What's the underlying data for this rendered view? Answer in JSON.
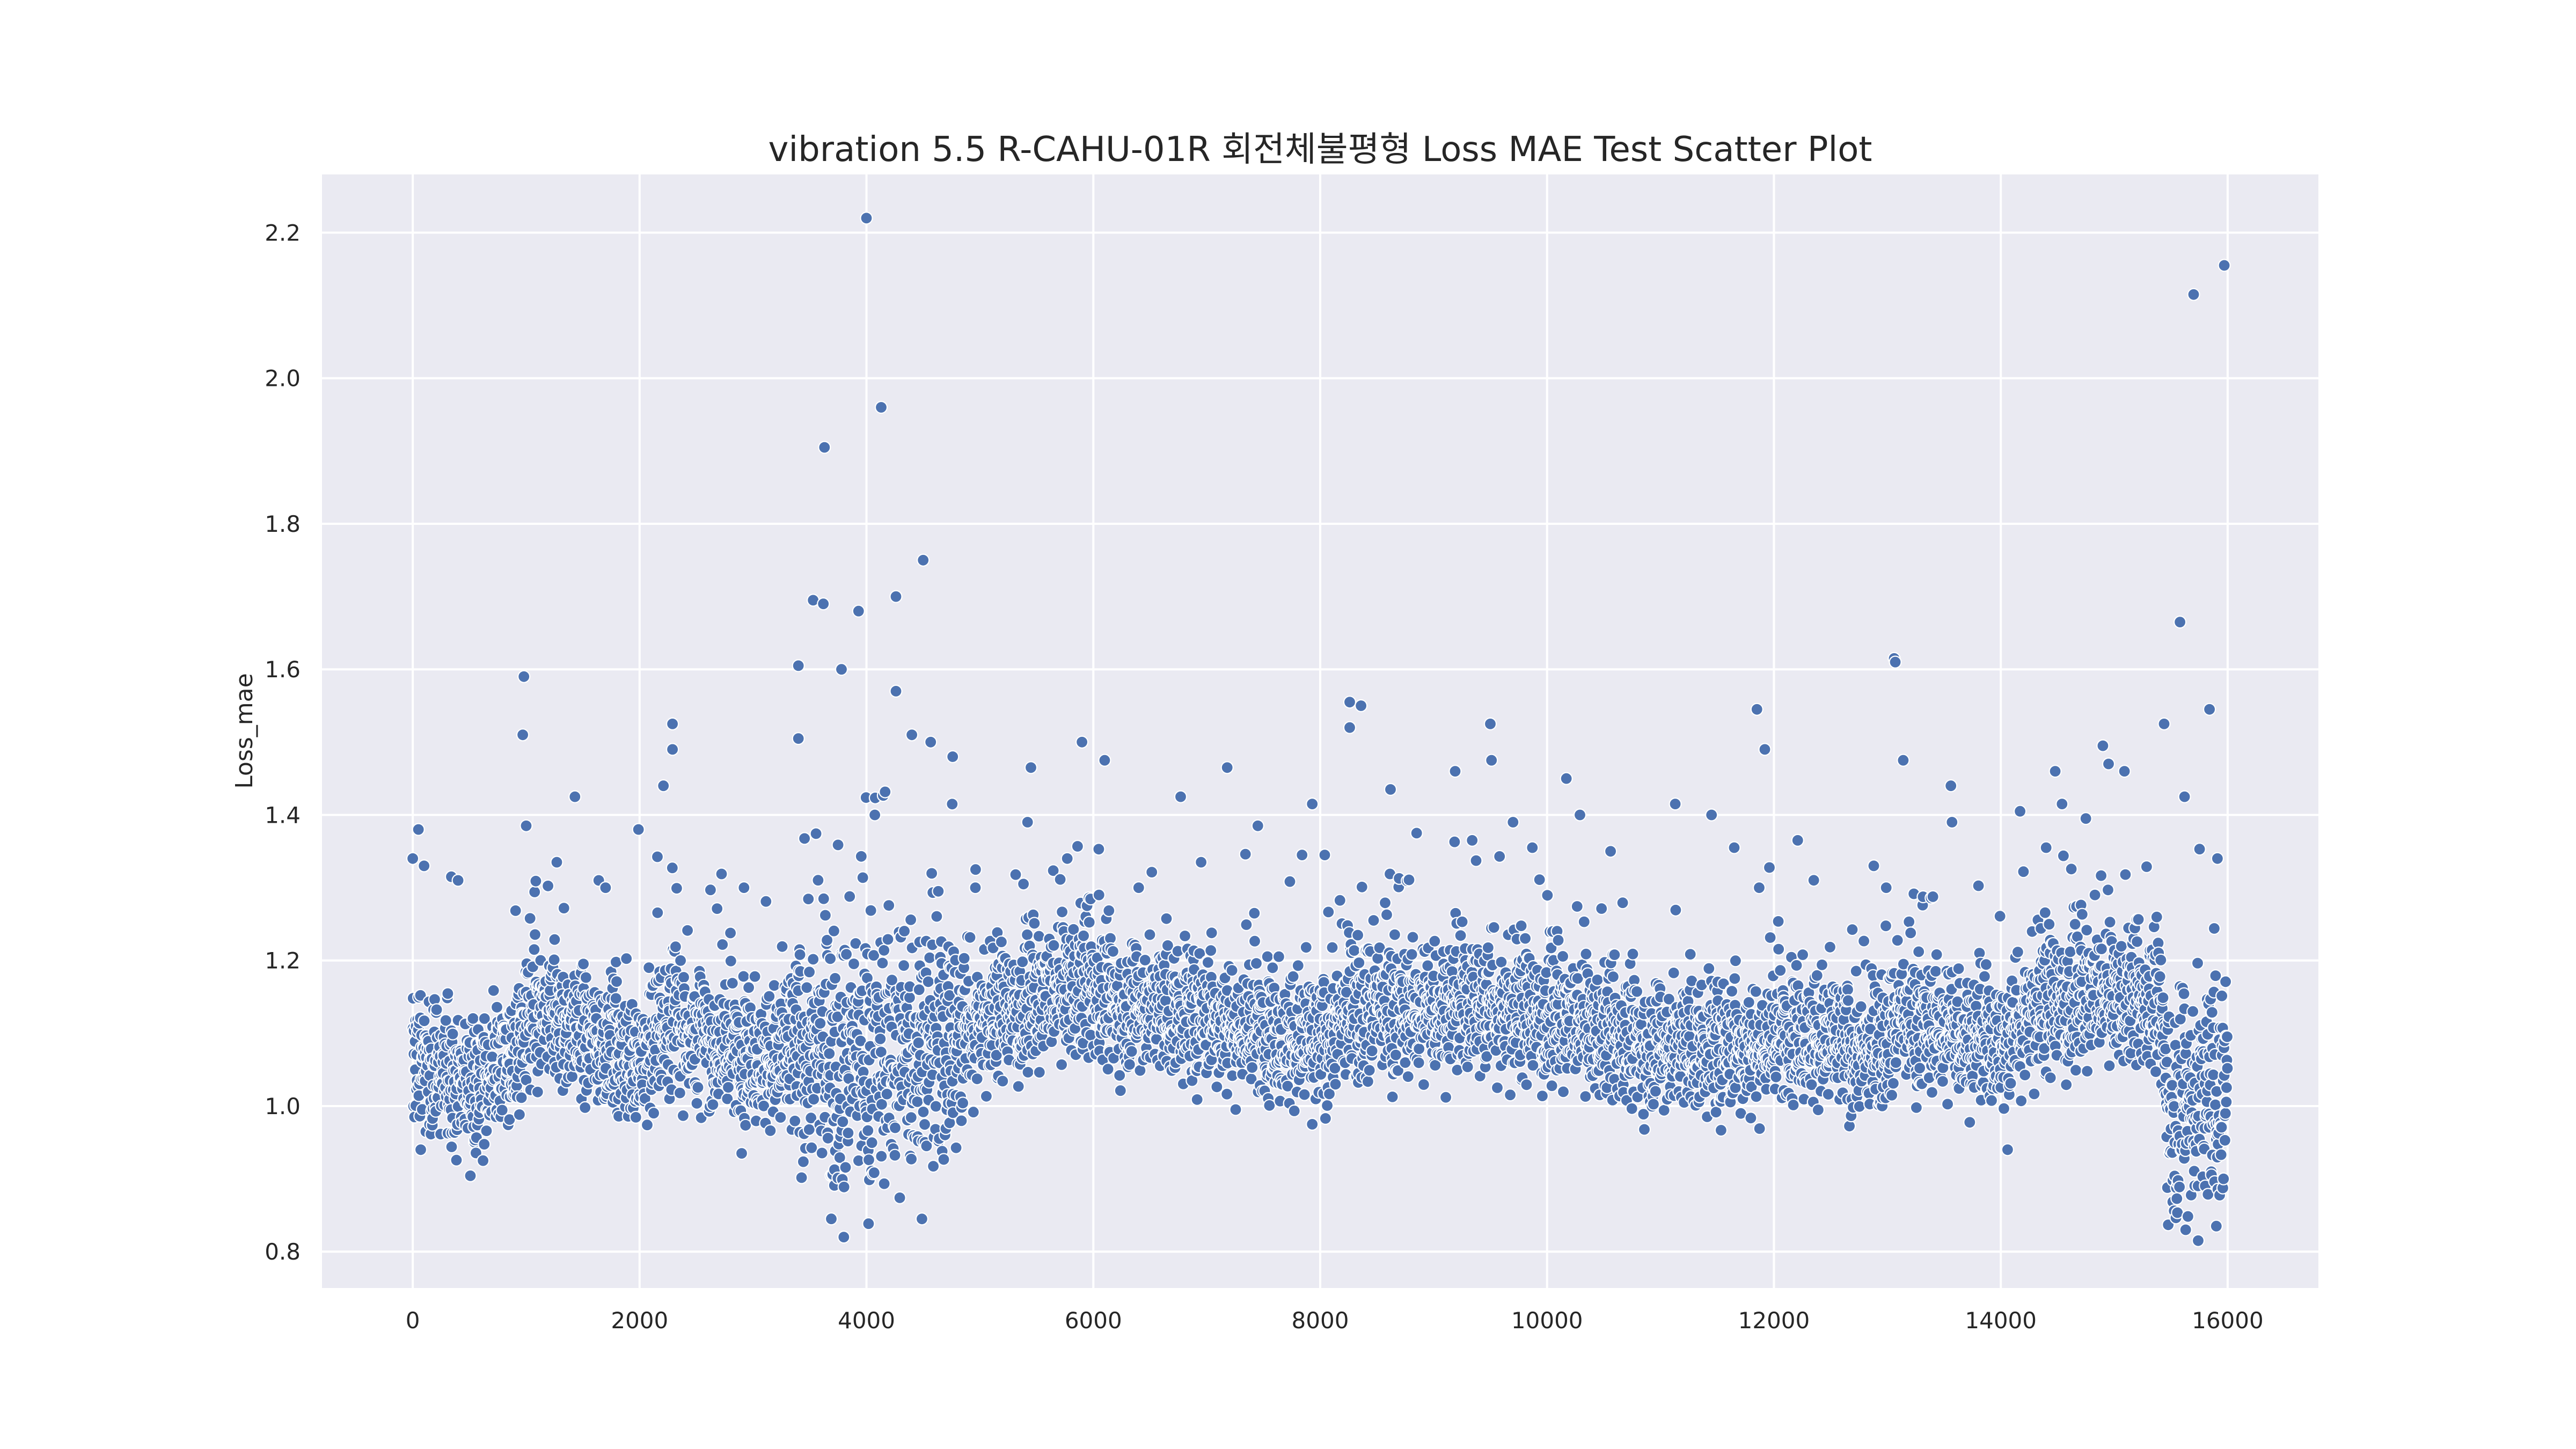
{
  "chart_data": {
    "type": "scatter",
    "title": "vibration 5.5 R-CAHU-01R 회전체불평형 Loss MAE Test Scatter Plot",
    "xlabel": "",
    "ylabel": "Loss_mae",
    "xlim": [
      -800,
      16800
    ],
    "ylim": [
      0.75,
      2.28
    ],
    "xticks": [
      0,
      2000,
      4000,
      6000,
      8000,
      10000,
      12000,
      14000,
      16000
    ],
    "yticks": [
      0.8,
      1.0,
      1.2,
      1.4,
      1.6,
      1.8,
      2.0,
      2.2
    ],
    "xtick_labels": [
      "0",
      "2000",
      "4000",
      "6000",
      "8000",
      "10000",
      "12000",
      "14000",
      "16000"
    ],
    "ytick_labels": [
      "0.8",
      "1.0",
      "1.2",
      "1.4",
      "1.6",
      "1.8",
      "2.0",
      "2.2"
    ],
    "grid": true,
    "marker_color": "#4c72b0",
    "background_color": "#eaeaf2",
    "n_points": 16000,
    "bulk_trend": {
      "x": [
        0,
        600,
        900,
        1100,
        1600,
        2000,
        2300,
        2700,
        3200,
        3500,
        4000,
        4700,
        5000,
        5500,
        5900,
        6200,
        7000,
        7500,
        8000,
        8300,
        8800,
        9500,
        10000,
        10500,
        11000,
        11800,
        12200,
        12800,
        13100,
        13600,
        14000,
        14300,
        15000,
        15400,
        15500,
        16000
      ],
      "median": [
        1.06,
        1.03,
        1.07,
        1.12,
        1.1,
        1.06,
        1.12,
        1.08,
        1.06,
        1.08,
        1.07,
        1.08,
        1.12,
        1.14,
        1.17,
        1.14,
        1.12,
        1.1,
        1.08,
        1.14,
        1.13,
        1.14,
        1.12,
        1.1,
        1.08,
        1.08,
        1.1,
        1.07,
        1.12,
        1.1,
        1.08,
        1.14,
        1.15,
        1.14,
        1.0,
        1.02
      ],
      "spread": [
        0.08,
        0.08,
        0.08,
        0.09,
        0.08,
        0.08,
        0.09,
        0.08,
        0.08,
        0.15,
        0.16,
        0.16,
        0.08,
        0.08,
        0.09,
        0.08,
        0.08,
        0.08,
        0.08,
        0.09,
        0.08,
        0.09,
        0.08,
        0.08,
        0.08,
        0.08,
        0.08,
        0.08,
        0.08,
        0.08,
        0.08,
        0.09,
        0.08,
        0.08,
        0.15,
        0.14
      ]
    },
    "outliers": [
      {
        "x": 4000,
        "y": 2.22
      },
      {
        "x": 15970,
        "y": 2.155
      },
      {
        "x": 15700,
        "y": 2.115
      },
      {
        "x": 4130,
        "y": 1.96
      },
      {
        "x": 3630,
        "y": 1.905
      },
      {
        "x": 4500,
        "y": 1.75
      },
      {
        "x": 4260,
        "y": 1.7
      },
      {
        "x": 3530,
        "y": 1.695
      },
      {
        "x": 3620,
        "y": 1.69
      },
      {
        "x": 3930,
        "y": 1.68
      },
      {
        "x": 15580,
        "y": 1.665
      },
      {
        "x": 13060,
        "y": 1.615
      },
      {
        "x": 13070,
        "y": 1.61
      },
      {
        "x": 3400,
        "y": 1.605
      },
      {
        "x": 3780,
        "y": 1.6
      },
      {
        "x": 980,
        "y": 1.59
      },
      {
        "x": 4260,
        "y": 1.57
      },
      {
        "x": 8260,
        "y": 1.555
      },
      {
        "x": 8360,
        "y": 1.55
      },
      {
        "x": 11850,
        "y": 1.545
      },
      {
        "x": 15840,
        "y": 1.545
      },
      {
        "x": 15440,
        "y": 1.525
      },
      {
        "x": 2290,
        "y": 1.525
      },
      {
        "x": 9500,
        "y": 1.525
      },
      {
        "x": 8260,
        "y": 1.52
      },
      {
        "x": 4400,
        "y": 1.51
      },
      {
        "x": 970,
        "y": 1.51
      },
      {
        "x": 3400,
        "y": 1.505
      },
      {
        "x": 5900,
        "y": 1.5
      },
      {
        "x": 14900,
        "y": 1.495
      },
      {
        "x": 2290,
        "y": 1.49
      },
      {
        "x": 11920,
        "y": 1.49
      },
      {
        "x": 4760,
        "y": 1.48
      },
      {
        "x": 13140,
        "y": 1.475
      },
      {
        "x": 9510,
        "y": 1.475
      },
      {
        "x": 6100,
        "y": 1.475
      },
      {
        "x": 14950,
        "y": 1.47
      },
      {
        "x": 7180,
        "y": 1.465
      },
      {
        "x": 5450,
        "y": 1.465
      },
      {
        "x": 9190,
        "y": 1.46
      },
      {
        "x": 14480,
        "y": 1.46
      },
      {
        "x": 15090,
        "y": 1.46
      },
      {
        "x": 10170,
        "y": 1.45
      },
      {
        "x": 2210,
        "y": 1.44
      },
      {
        "x": 13560,
        "y": 1.44
      },
      {
        "x": 8620,
        "y": 1.435
      },
      {
        "x": 1430,
        "y": 1.425
      },
      {
        "x": 6770,
        "y": 1.425
      },
      {
        "x": 15620,
        "y": 1.425
      },
      {
        "x": 11130,
        "y": 1.415
      },
      {
        "x": 7930,
        "y": 1.415
      },
      {
        "x": 14540,
        "y": 1.415
      },
      {
        "x": 14170,
        "y": 1.405
      },
      {
        "x": 11450,
        "y": 1.4
      },
      {
        "x": 10290,
        "y": 1.4
      },
      {
        "x": 14750,
        "y": 1.395
      },
      {
        "x": 13570,
        "y": 1.39
      },
      {
        "x": 5420,
        "y": 1.39
      },
      {
        "x": 9700,
        "y": 1.39
      },
      {
        "x": 1990,
        "y": 1.38
      },
      {
        "x": 50,
        "y": 1.38
      },
      {
        "x": 1000,
        "y": 1.385
      },
      {
        "x": 8850,
        "y": 1.375
      },
      {
        "x": 7450,
        "y": 1.385
      },
      {
        "x": 12210,
        "y": 1.365
      },
      {
        "x": 9340,
        "y": 1.365
      },
      {
        "x": 9870,
        "y": 1.355
      },
      {
        "x": 11650,
        "y": 1.355
      },
      {
        "x": 14400,
        "y": 1.355
      },
      {
        "x": 10560,
        "y": 1.35
      },
      {
        "x": 7840,
        "y": 1.345
      },
      {
        "x": 15910,
        "y": 1.34
      },
      {
        "x": 0,
        "y": 1.34
      },
      {
        "x": 5770,
        "y": 1.34
      },
      {
        "x": 8040,
        "y": 1.345
      },
      {
        "x": 1270,
        "y": 1.335
      },
      {
        "x": 100,
        "y": 1.33
      },
      {
        "x": 6950,
        "y": 1.335
      },
      {
        "x": 12880,
        "y": 1.33
      },
      {
        "x": 340,
        "y": 1.315
      },
      {
        "x": 1640,
        "y": 1.31
      },
      {
        "x": 2920,
        "y": 1.3
      },
      {
        "x": 4960,
        "y": 1.3
      },
      {
        "x": 12990,
        "y": 1.3
      },
      {
        "x": 400,
        "y": 1.31
      },
      {
        "x": 1700,
        "y": 1.3
      },
      {
        "x": 6400,
        "y": 1.3
      },
      {
        "x": 11870,
        "y": 1.3
      },
      {
        "x": 6050,
        "y": 1.29
      },
      {
        "x": 14830,
        "y": 1.29
      }
    ],
    "low_outliers": [
      {
        "x": 3800,
        "y": 0.82
      },
      {
        "x": 15740,
        "y": 0.815
      },
      {
        "x": 620,
        "y": 0.925
      },
      {
        "x": 2900,
        "y": 0.935
      },
      {
        "x": 14060,
        "y": 0.94
      },
      {
        "x": 7930,
        "y": 0.975
      },
      {
        "x": 3690,
        "y": 0.845
      },
      {
        "x": 15630,
        "y": 0.83
      },
      {
        "x": 15900,
        "y": 0.835
      }
    ]
  }
}
